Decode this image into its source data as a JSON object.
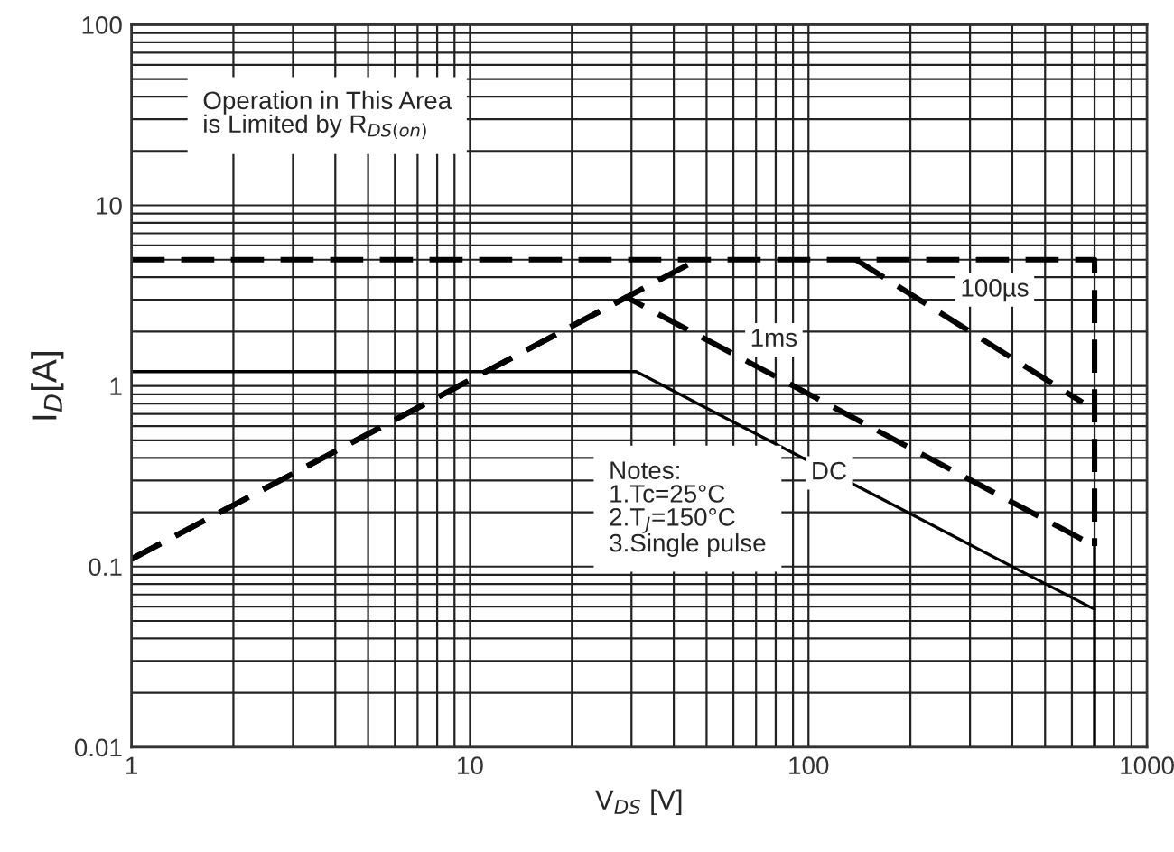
{
  "chart_data": {
    "type": "line",
    "xlabel": "V$_{DS}$ [V]",
    "ylabel": "I$_{D}$[A]",
    "log": "xy",
    "grid": true,
    "xlim": [
      1,
      1000
    ],
    "xticks": [
      1,
      10,
      100,
      1000
    ],
    "ylim": [
      0.01,
      100
    ],
    "yticks": [
      0.01,
      0.1,
      1,
      10,
      100
    ],
    "series": [
      {
        "color": "#000000",
        "line_style": "dashed",
        "x": [
          1,
          47
        ],
        "values": [
          0.11,
          5
        ]
      },
      {
        "color": "#000000",
        "line_style": "dashed",
        "x": [
          1,
          700,
          700
        ],
        "values": [
          5,
          5,
          0.13
        ]
      },
      {
        "color": "#000000",
        "line_style": "dashed",
        "x": [
          138,
          645
        ],
        "values": [
          5,
          0.81
        ]
      },
      {
        "color": "#000000",
        "line_style": "dashed",
        "x": [
          1,
          29,
          700
        ],
        "values": [
          0.11,
          3.1,
          0.13
        ]
      },
      {
        "color": "#000000",
        "line_style": "solid",
        "x": [
          1,
          31,
          700,
          700
        ],
        "values": [
          1.2,
          1.2,
          0.058,
          0.01
        ]
      },
      {
        "color": "#000000",
        "line_style": "solid",
        "x": [
          700,
          700
        ],
        "values": [
          0.13,
          0.058
        ]
      }
    ],
    "annotations": [
      "Operation in This Area\nis Limited by R$_{DS(on)}$",
      "Notes:\n1.Tc=25°C\n2.T$_{J}$=150°C\n3.Single pulse",
      {
        "text": "100µs",
        "x": 355,
        "y": 3.4
      },
      {
        "text": "1ms",
        "x": 79,
        "y": 1.8
      },
      {
        "text": "DC",
        "x": 115,
        "y": 0.33
      }
    ]
  }
}
